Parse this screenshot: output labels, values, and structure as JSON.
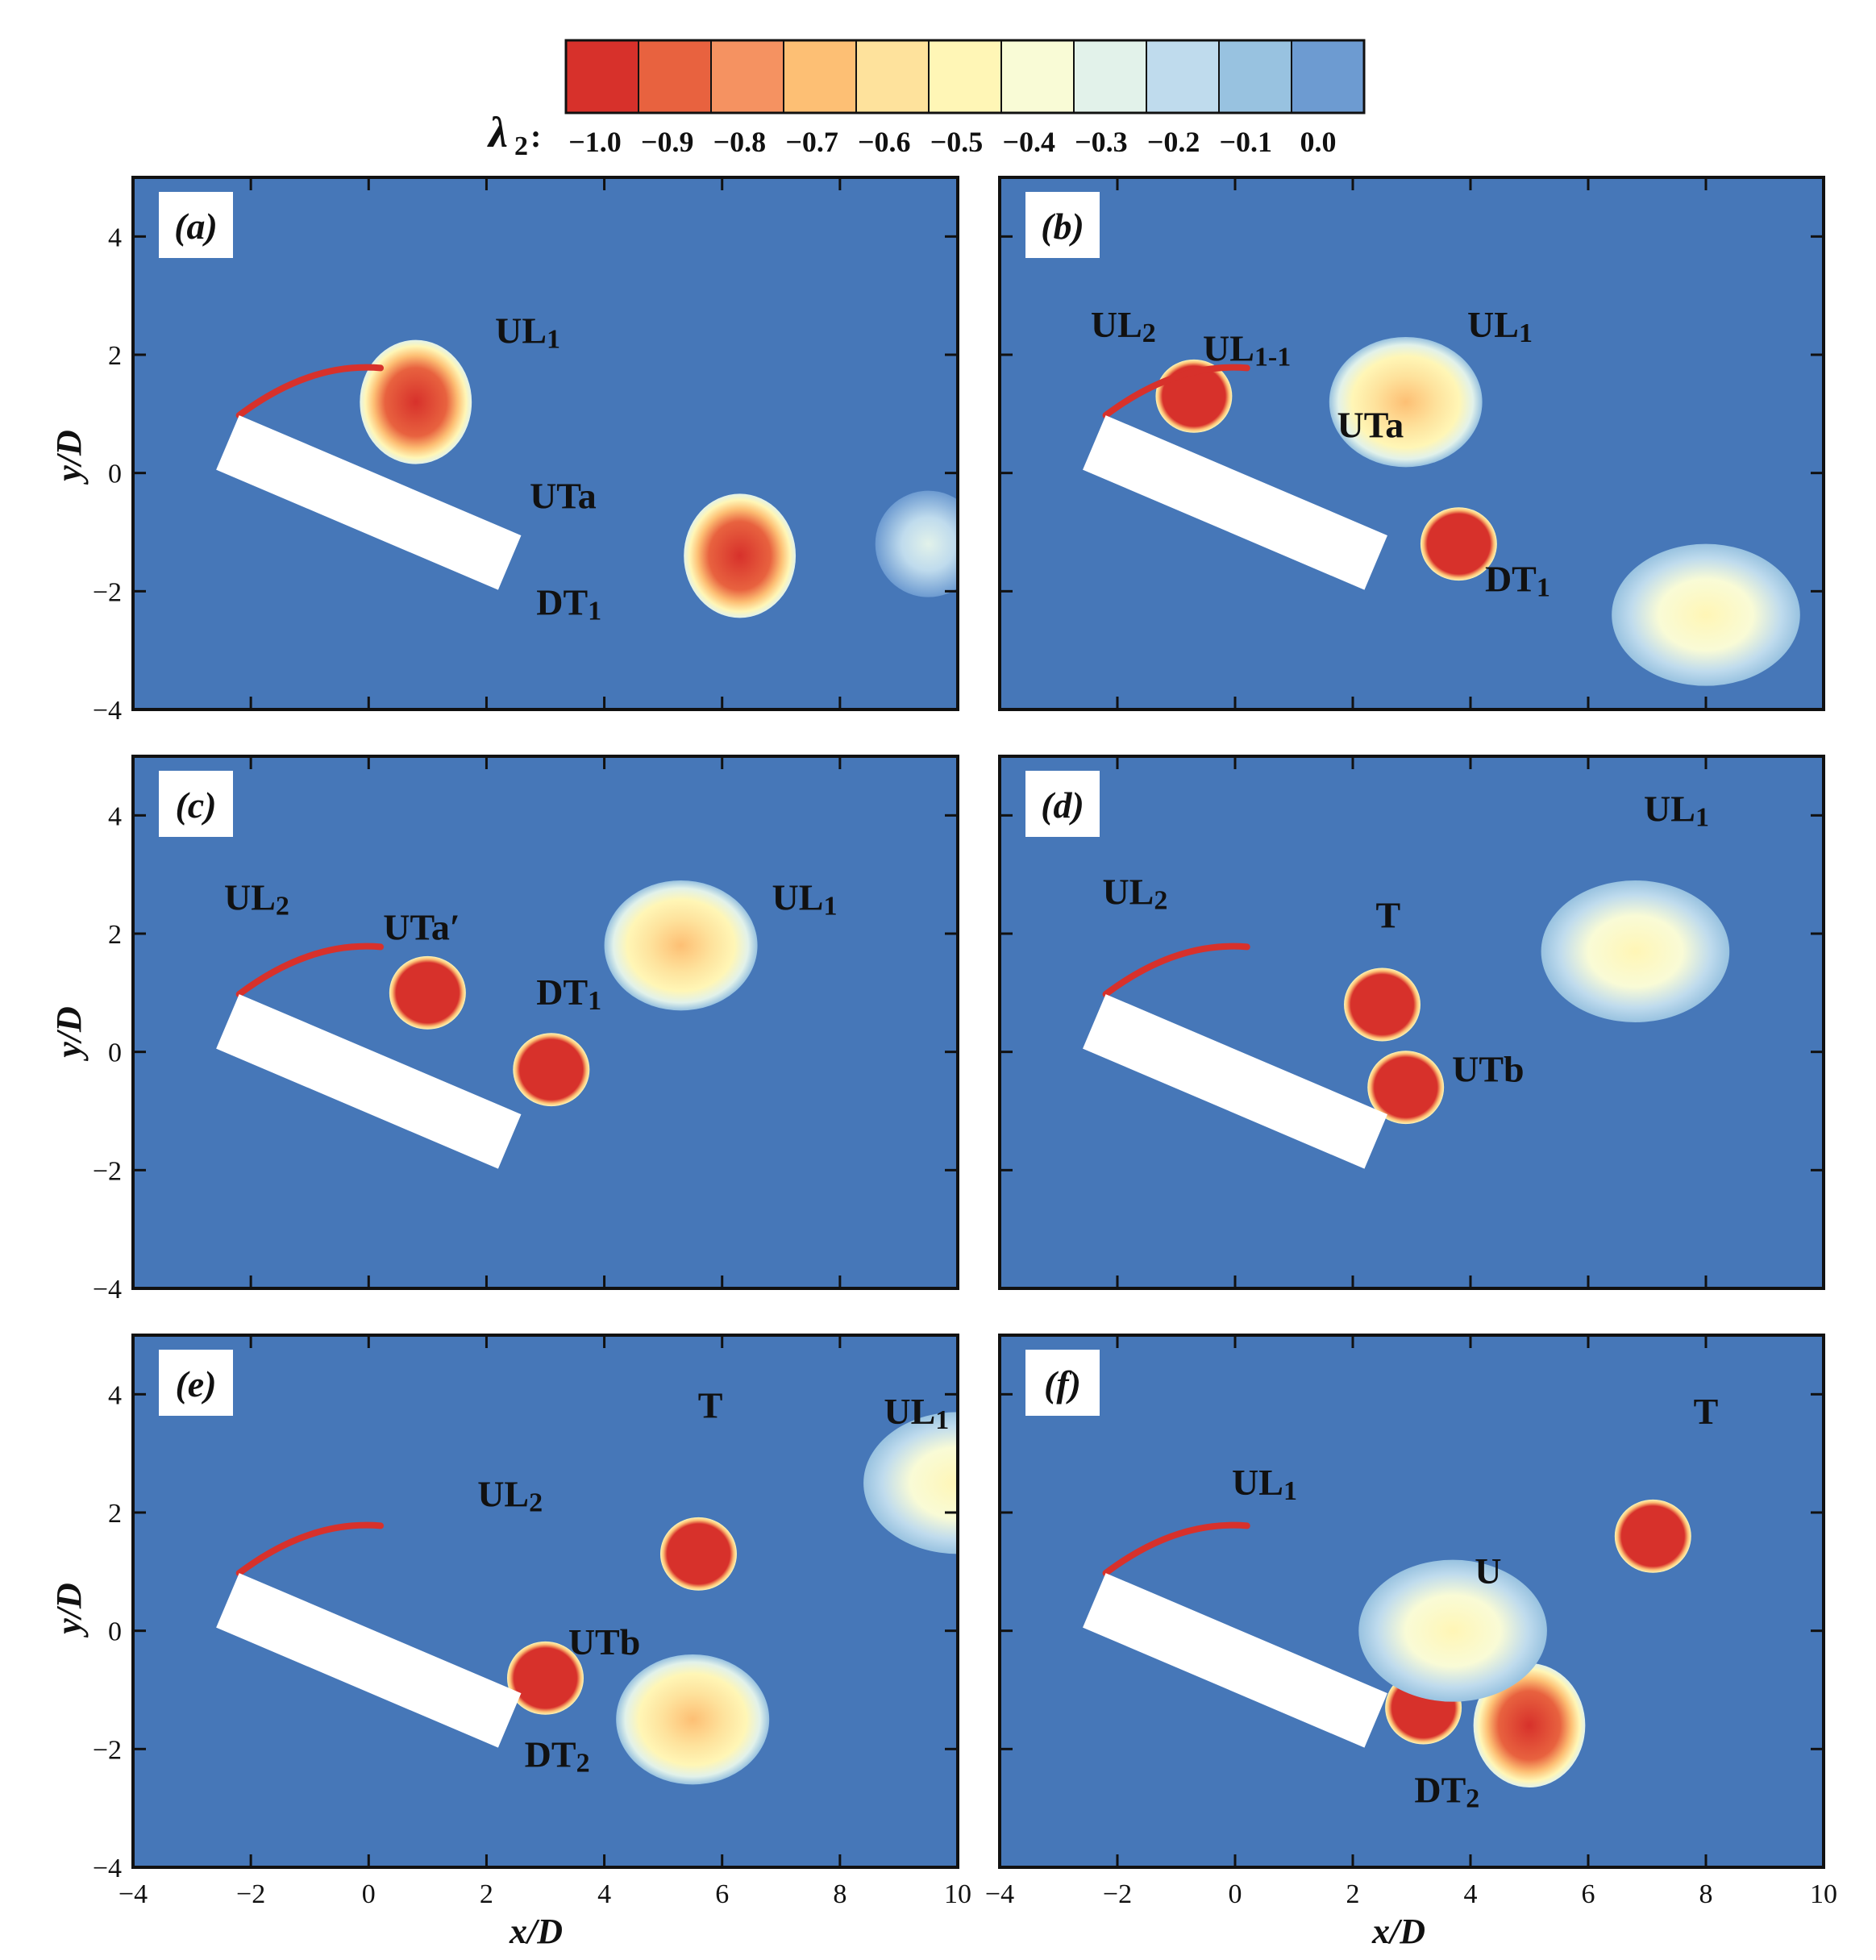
{
  "colorbar": {
    "symbol": "λ",
    "subscript": "2",
    "colon": ":",
    "ticks": [
      "−1.0",
      "−0.9",
      "−0.8",
      "−0.7",
      "−0.6",
      "−0.5",
      "−0.4",
      "−0.3",
      "−0.2",
      "−0.1",
      "0.0"
    ],
    "colors": [
      "#d7312b",
      "#e8623f",
      "#f59261",
      "#fdbf74",
      "#fee29c",
      "#fff6b6",
      "#f9fbd6",
      "#e2f2ea",
      "#bfdbed",
      "#98c2e0",
      "#6d9bd1"
    ]
  },
  "background_color": "#4677b8",
  "body_color": "#ffffff",
  "chart_data": {
    "type": "heatmap",
    "variable": "λ2",
    "xlabel": "x/D",
    "ylabel": "y/D",
    "xlim": [
      -4,
      10
    ],
    "ylim": [
      -4,
      5
    ],
    "xticks": [
      -4,
      -2,
      0,
      2,
      4,
      6,
      8,
      10
    ],
    "yticks": [
      -4,
      -2,
      0,
      2,
      4
    ],
    "xtick_labels": [
      "−4",
      "−2",
      "0",
      "2",
      "4",
      "6",
      "8",
      "10"
    ],
    "ytick_labels": [
      "−4",
      "−2",
      "0",
      "2",
      "4"
    ],
    "color_levels": [
      -1.0,
      -0.9,
      -0.8,
      -0.7,
      -0.6,
      -0.5,
      -0.4,
      -0.3,
      -0.2,
      -0.1,
      0.0
    ],
    "body": {
      "shape": "rectangle",
      "center": [
        0,
        -0.5
      ],
      "length": 5.2,
      "width": 1.0,
      "angle_deg": -23
    },
    "panels": [
      {
        "id": "a",
        "label": "(a)",
        "annotations": [
          {
            "text": "UL",
            "sub": "1",
            "x": 2.7,
            "y": 2.2
          },
          {
            "text": "UTa",
            "sub": "",
            "x": 3.3,
            "y": -0.6
          },
          {
            "text": "DT",
            "sub": "1",
            "x": 3.4,
            "y": -2.4
          }
        ],
        "vortices": [
          {
            "x": 0.8,
            "y": 1.2,
            "min": -0.8
          },
          {
            "x": 6.3,
            "y": -1.4,
            "min": -0.9
          },
          {
            "x": 9.5,
            "y": -1.2,
            "min": -0.3
          }
        ]
      },
      {
        "id": "b",
        "label": "(b)",
        "annotations": [
          {
            "text": "UL",
            "sub": "2",
            "x": -1.9,
            "y": 2.3
          },
          {
            "text": "UL",
            "sub": "1-1",
            "x": 0.2,
            "y": 1.9
          },
          {
            "text": "UL",
            "sub": "1",
            "x": 4.5,
            "y": 2.3
          },
          {
            "text": "UTa",
            "sub": "",
            "x": 2.3,
            "y": 0.6
          },
          {
            "text": "DT",
            "sub": "1",
            "x": 4.8,
            "y": -2.0
          }
        ],
        "vortices": [
          {
            "x": -0.7,
            "y": 1.3,
            "min": -1.0
          },
          {
            "x": 2.9,
            "y": 1.2,
            "min": -0.7
          },
          {
            "x": 3.8,
            "y": -1.2,
            "min": -1.0
          },
          {
            "x": 8.0,
            "y": -2.4,
            "min": -0.5
          }
        ]
      },
      {
        "id": "c",
        "label": "(c)",
        "annotations": [
          {
            "text": "UL",
            "sub": "2",
            "x": -1.9,
            "y": 2.4
          },
          {
            "text": "UTa′",
            "sub": "",
            "x": 0.9,
            "y": 1.9
          },
          {
            "text": "DT",
            "sub": "1",
            "x": 3.4,
            "y": 0.8
          },
          {
            "text": "UL",
            "sub": "1",
            "x": 7.4,
            "y": 2.4
          }
        ],
        "vortices": [
          {
            "x": 1.0,
            "y": 1.0,
            "min": -1.0
          },
          {
            "x": 3.1,
            "y": -0.3,
            "min": -1.0
          },
          {
            "x": 5.3,
            "y": 1.8,
            "min": -0.6
          }
        ]
      },
      {
        "id": "d",
        "label": "(d)",
        "annotations": [
          {
            "text": "UL",
            "sub": "2",
            "x": -1.7,
            "y": 2.5
          },
          {
            "text": "T",
            "sub": "",
            "x": 2.6,
            "y": 2.1
          },
          {
            "text": "UTb",
            "sub": "",
            "x": 4.3,
            "y": -0.5
          },
          {
            "text": "UL",
            "sub": "1",
            "x": 7.5,
            "y": 3.9
          }
        ],
        "vortices": [
          {
            "x": 2.5,
            "y": 0.8,
            "min": -1.0
          },
          {
            "x": 2.9,
            "y": -0.6,
            "min": -1.0
          },
          {
            "x": 6.8,
            "y": 1.7,
            "min": -0.5
          }
        ]
      },
      {
        "id": "e",
        "label": "(e)",
        "annotations": [
          {
            "text": "T",
            "sub": "",
            "x": 5.8,
            "y": 3.6
          },
          {
            "text": "UL",
            "sub": "1",
            "x": 9.3,
            "y": 3.5
          },
          {
            "text": "UL",
            "sub": "2",
            "x": 2.4,
            "y": 2.1
          },
          {
            "text": "UTb",
            "sub": "",
            "x": 4.0,
            "y": -0.4
          },
          {
            "text": "DT",
            "sub": "2",
            "x": 3.2,
            "y": -2.3
          }
        ],
        "vortices": [
          {
            "x": 5.6,
            "y": 1.3,
            "min": -1.0
          },
          {
            "x": 3.0,
            "y": -0.8,
            "min": -1.0
          },
          {
            "x": 5.5,
            "y": -1.5,
            "min": -0.6
          },
          {
            "x": 10.0,
            "y": 2.5,
            "min": -0.4
          }
        ]
      },
      {
        "id": "f",
        "label": "(f)",
        "annotations": [
          {
            "text": "UL",
            "sub": "1",
            "x": 0.5,
            "y": 2.3
          },
          {
            "text": "U",
            "sub": "",
            "x": 4.3,
            "y": 0.8
          },
          {
            "text": "T",
            "sub": "",
            "x": 8.0,
            "y": 3.5
          },
          {
            "text": "DT",
            "sub": "2",
            "x": 3.6,
            "y": -2.9
          }
        ],
        "vortices": [
          {
            "x": 7.1,
            "y": 1.6,
            "min": -1.0
          },
          {
            "x": 3.2,
            "y": -1.3,
            "min": -1.0
          },
          {
            "x": 5.0,
            "y": -1.6,
            "min": -0.8
          },
          {
            "x": 3.7,
            "y": 0.0,
            "min": -0.5
          }
        ]
      }
    ]
  }
}
